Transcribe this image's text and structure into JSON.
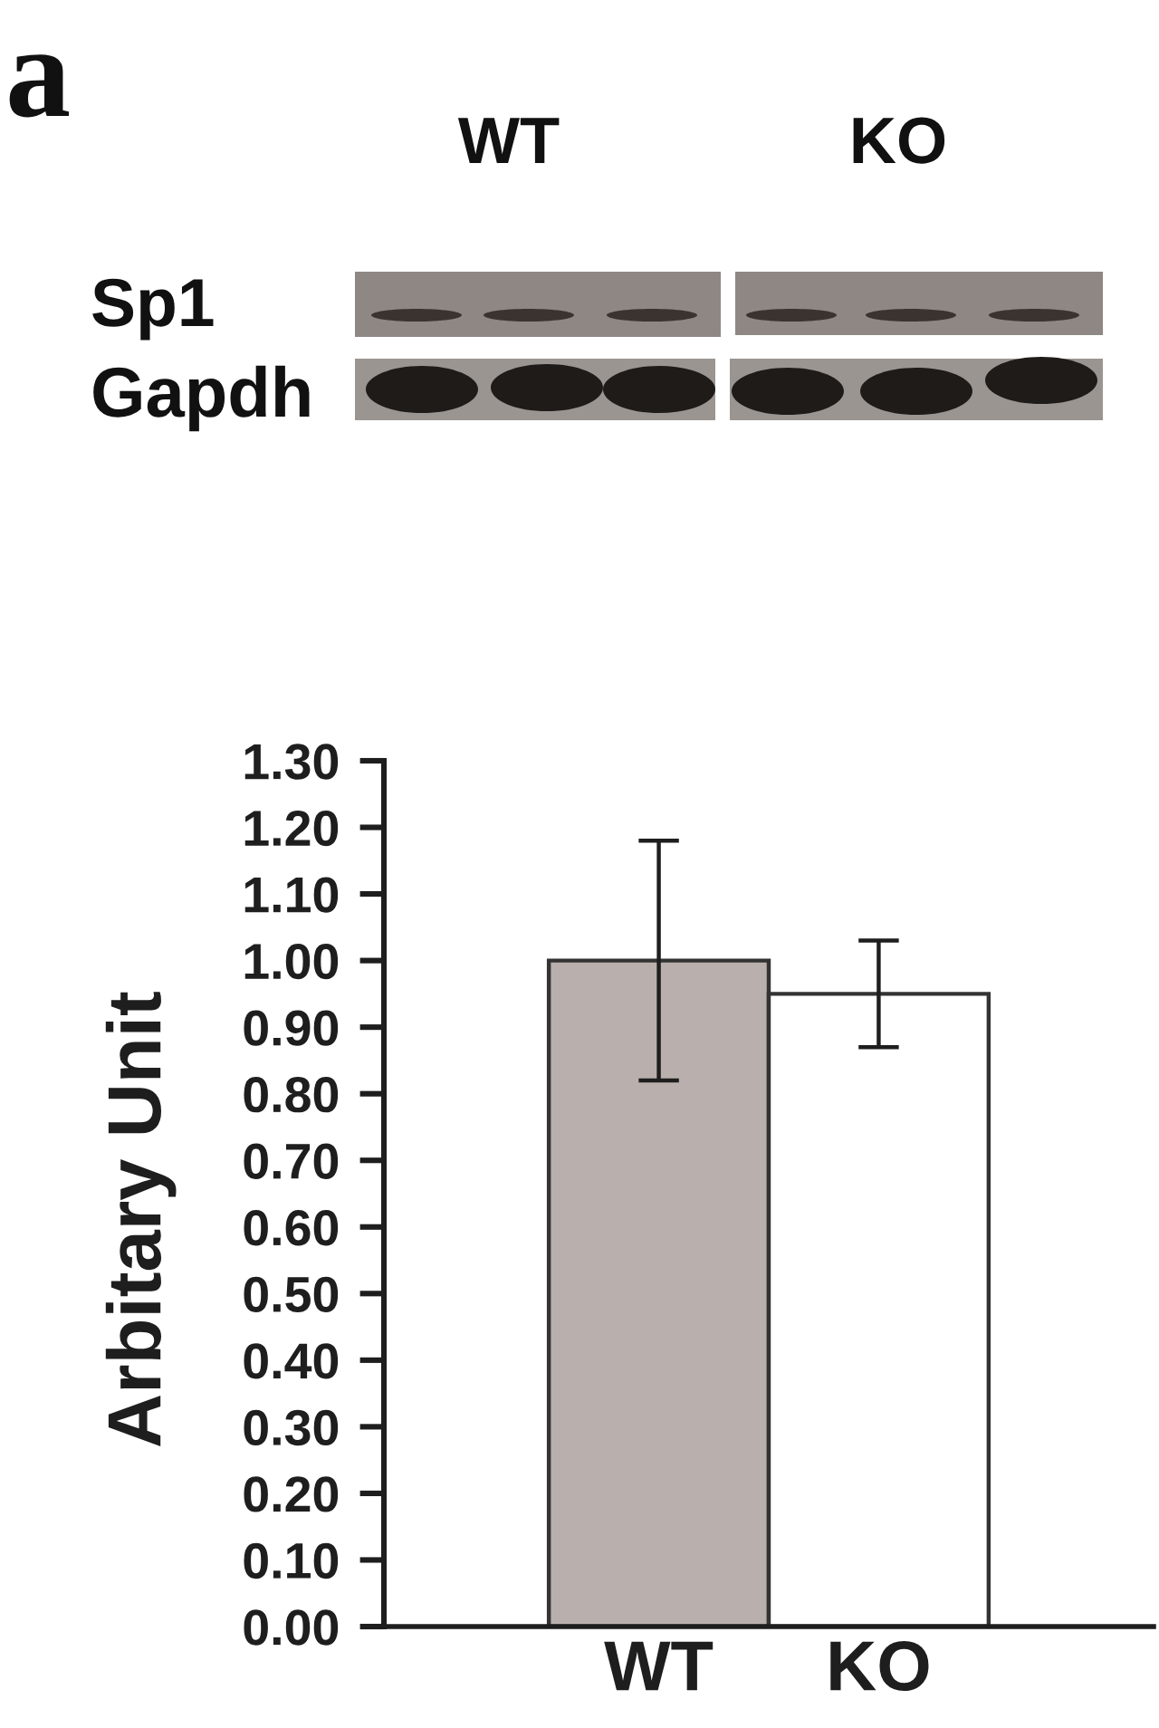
{
  "chart_data": {
    "type": "bar",
    "ylabel": "Arbitary Unit",
    "categories": [
      "WT",
      "KO"
    ],
    "values": [
      1.0,
      0.95
    ],
    "errors": [
      0.18,
      0.08
    ],
    "colors": [
      "#b9b0ad",
      "#ffffff"
    ],
    "ylim": [
      0,
      1.3
    ],
    "yticks": [
      {
        "value": 0,
        "label": "0.00"
      },
      {
        "value": 0.1,
        "label": "0.10"
      },
      {
        "value": 0.2,
        "label": "0.20"
      },
      {
        "value": 0.3,
        "label": "0.30"
      },
      {
        "value": 0.4,
        "label": "0.40"
      },
      {
        "value": 0.5,
        "label": "0.50"
      },
      {
        "value": 0.6,
        "label": "0.60"
      },
      {
        "value": 0.7,
        "label": "0.70"
      },
      {
        "value": 0.8,
        "label": "0.80"
      },
      {
        "value": 0.9,
        "label": "0.90"
      },
      {
        "value": 1.0,
        "label": "1.00"
      },
      {
        "value": 1.1,
        "label": "1.10"
      },
      {
        "value": 1.2,
        "label": "1.20"
      },
      {
        "value": 1.3,
        "label": "1.30"
      }
    ],
    "grid": false,
    "annotations": [
      "a",
      "WT",
      "KO",
      "Sp1",
      "Gapdh"
    ]
  }
}
